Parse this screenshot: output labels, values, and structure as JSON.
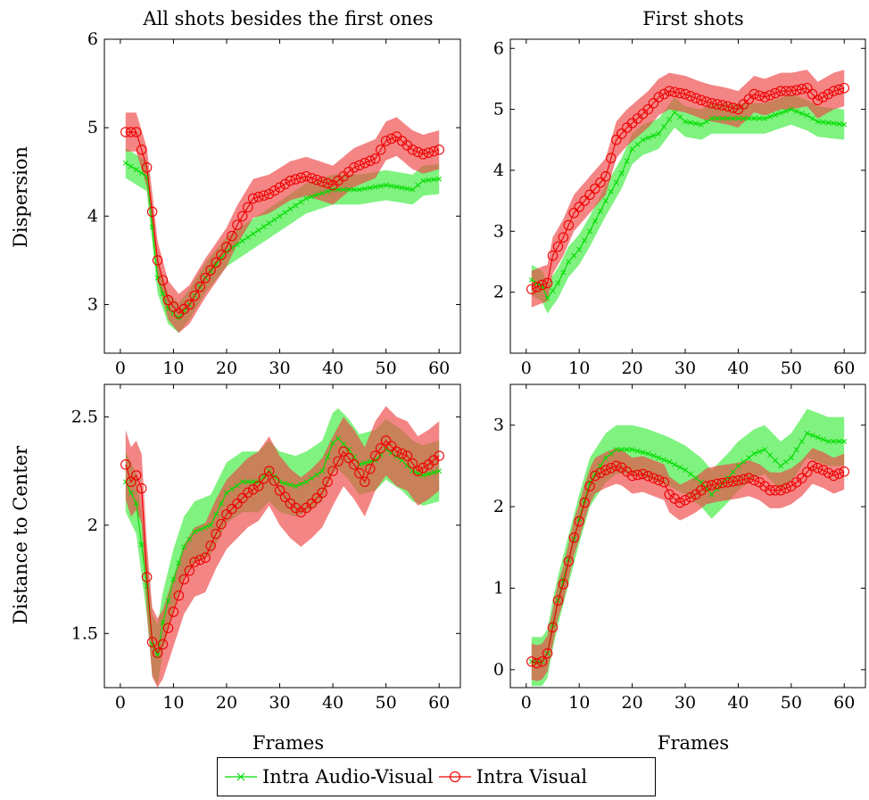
{
  "colors": {
    "green": "#00dd00",
    "green_band": "#55ee55",
    "red": "#ee0000",
    "red_band": "#ee4444"
  },
  "labels": {
    "col_left": "All shots besides the first ones",
    "col_right": "First shots",
    "row_top": "Dispersion",
    "row_bottom": "Distance to Center",
    "xlabel": "Frames"
  },
  "legend": [
    {
      "name": "Intra Audio-Visual",
      "marker": "x",
      "color": "#00dd00"
    },
    {
      "name": "Intra Visual",
      "marker": "circle",
      "color": "#ee0000"
    }
  ],
  "chart_data": [
    {
      "type": "line",
      "title": "All shots besides the first ones",
      "xlabel": "",
      "ylabel": "Dispersion",
      "xlim": [
        -3,
        64
      ],
      "ylim": [
        2.45,
        6.0
      ],
      "xticks": [
        0,
        10,
        20,
        30,
        40,
        50,
        60
      ],
      "yticks": [
        3,
        4,
        5,
        6
      ],
      "series": [
        {
          "name": "Intra Audio-Visual",
          "x": [
            1,
            5,
            7,
            9,
            11,
            13,
            16,
            20,
            25,
            30,
            35,
            40,
            45,
            50,
            55,
            57,
            60
          ],
          "y": [
            4.6,
            4.45,
            3.3,
            2.95,
            2.85,
            3.0,
            3.3,
            3.6,
            3.8,
            4.0,
            4.2,
            4.3,
            4.3,
            4.35,
            4.3,
            4.4,
            4.42
          ],
          "band": 0.17
        },
        {
          "name": "Intra Visual",
          "x": [
            1,
            3,
            5,
            6,
            7,
            9,
            11,
            13,
            16,
            20,
            22,
            25,
            28,
            32,
            35,
            40,
            44,
            48,
            50,
            52,
            55,
            57,
            60
          ],
          "y": [
            4.95,
            4.95,
            4.55,
            4.05,
            3.5,
            3.05,
            2.9,
            3.0,
            3.3,
            3.65,
            3.9,
            4.2,
            4.25,
            4.4,
            4.45,
            4.35,
            4.55,
            4.65,
            4.85,
            4.9,
            4.75,
            4.7,
            4.75
          ],
          "band": 0.22
        }
      ]
    },
    {
      "type": "line",
      "title": "First shots",
      "xlabel": "",
      "ylabel": "",
      "xlim": [
        -3,
        64
      ],
      "ylim": [
        1.0,
        6.15
      ],
      "xticks": [
        0,
        10,
        20,
        30,
        40,
        50,
        60
      ],
      "yticks": [
        2,
        3,
        4,
        5,
        6
      ],
      "series": [
        {
          "name": "Intra Audio-Visual",
          "x": [
            1,
            3,
            4,
            6,
            8,
            10,
            12,
            15,
            18,
            20,
            22,
            25,
            28,
            30,
            33,
            35,
            40,
            45,
            50,
            53,
            55,
            60
          ],
          "y": [
            2.2,
            2.1,
            1.9,
            2.15,
            2.5,
            2.7,
            3.0,
            3.5,
            3.95,
            4.35,
            4.5,
            4.6,
            4.95,
            4.8,
            4.75,
            4.85,
            4.85,
            4.85,
            5.0,
            4.9,
            4.8,
            4.75
          ],
          "band": 0.25
        },
        {
          "name": "Intra Visual",
          "x": [
            1,
            3,
            4,
            5,
            7,
            9,
            11,
            13,
            15,
            17,
            19,
            21,
            23,
            25,
            27,
            30,
            33,
            35,
            38,
            40,
            43,
            45,
            48,
            50,
            53,
            55,
            58,
            60
          ],
          "y": [
            2.05,
            2.12,
            2.15,
            2.6,
            2.9,
            3.3,
            3.5,
            3.7,
            3.9,
            4.5,
            4.7,
            4.85,
            5.0,
            5.2,
            5.3,
            5.25,
            5.15,
            5.1,
            5.05,
            5.0,
            5.25,
            5.2,
            5.3,
            5.3,
            5.35,
            5.15,
            5.3,
            5.35
          ],
          "band": 0.3
        }
      ]
    },
    {
      "type": "line",
      "title": "",
      "xlabel": "Frames",
      "ylabel": "Distance to Center",
      "xlim": [
        -3,
        64
      ],
      "ylim": [
        1.25,
        2.65
      ],
      "xticks": [
        0,
        10,
        20,
        30,
        40,
        50,
        60
      ],
      "yticks": [
        1.5,
        2,
        2.5
      ],
      "series": [
        {
          "name": "Intra Audio-Visual",
          "x": [
            1,
            3,
            5,
            6,
            7,
            8,
            10,
            12,
            14,
            17,
            20,
            23,
            26,
            28,
            30,
            33,
            35,
            38,
            40,
            41,
            43,
            45,
            48,
            50,
            53,
            55,
            57,
            60
          ],
          "y": [
            2.2,
            2.1,
            1.72,
            1.45,
            1.4,
            1.55,
            1.75,
            1.9,
            1.97,
            2.0,
            2.15,
            2.2,
            2.2,
            2.25,
            2.2,
            2.18,
            2.2,
            2.25,
            2.38,
            2.4,
            2.35,
            2.28,
            2.3,
            2.35,
            2.3,
            2.25,
            2.23,
            2.25
          ],
          "band": 0.14
        },
        {
          "name": "Intra Visual",
          "x": [
            1,
            2,
            3,
            4,
            5,
            6,
            7,
            8,
            10,
            12,
            14,
            16,
            18,
            20,
            22,
            24,
            26,
            28,
            30,
            32,
            34,
            36,
            38,
            40,
            42,
            44,
            46,
            48,
            50,
            52,
            54,
            56,
            58,
            60
          ],
          "y": [
            2.28,
            2.2,
            2.23,
            2.17,
            1.76,
            1.46,
            1.41,
            1.45,
            1.6,
            1.75,
            1.83,
            1.85,
            1.96,
            2.05,
            2.1,
            2.15,
            2.18,
            2.25,
            2.16,
            2.1,
            2.06,
            2.1,
            2.15,
            2.25,
            2.34,
            2.28,
            2.2,
            2.32,
            2.39,
            2.34,
            2.32,
            2.25,
            2.28,
            2.32
          ],
          "band": 0.16
        }
      ]
    },
    {
      "type": "line",
      "title": "",
      "xlabel": "Frames",
      "ylabel": "",
      "xlim": [
        -3,
        64
      ],
      "ylim": [
        -0.22,
        3.5
      ],
      "xticks": [
        0,
        10,
        20,
        30,
        40,
        50,
        60
      ],
      "yticks": [
        0,
        1,
        2,
        3
      ],
      "series": [
        {
          "name": "Intra Audio-Visual",
          "x": [
            1,
            2,
            3,
            4,
            5,
            6,
            8,
            10,
            12,
            15,
            17,
            20,
            23,
            25,
            27,
            30,
            33,
            35,
            38,
            40,
            43,
            45,
            48,
            50,
            53,
            55,
            57,
            60
          ],
          "y": [
            0.1,
            0.1,
            0.1,
            0.2,
            0.55,
            0.85,
            1.35,
            1.85,
            2.3,
            2.6,
            2.7,
            2.7,
            2.65,
            2.6,
            2.55,
            2.45,
            2.3,
            2.15,
            2.35,
            2.5,
            2.65,
            2.7,
            2.5,
            2.6,
            2.9,
            2.85,
            2.8,
            2.8
          ],
          "band": 0.3
        },
        {
          "name": "Intra Visual",
          "x": [
            1,
            2,
            3,
            4,
            5,
            6,
            7,
            8,
            9,
            10,
            11,
            12,
            13,
            15,
            17,
            18,
            20,
            22,
            24,
            26,
            27,
            28,
            29,
            30,
            32,
            34,
            36,
            38,
            40,
            42,
            44,
            46,
            48,
            50,
            52,
            54,
            56,
            58,
            60
          ],
          "y": [
            0.1,
            0.08,
            0.1,
            0.2,
            0.52,
            0.85,
            1.05,
            1.33,
            1.62,
            1.82,
            2.05,
            2.25,
            2.38,
            2.45,
            2.5,
            2.48,
            2.38,
            2.4,
            2.35,
            2.3,
            2.15,
            2.1,
            2.05,
            2.08,
            2.15,
            2.25,
            2.28,
            2.3,
            2.32,
            2.35,
            2.3,
            2.2,
            2.2,
            2.25,
            2.35,
            2.5,
            2.45,
            2.38,
            2.43
          ],
          "band": 0.22
        }
      ]
    }
  ]
}
